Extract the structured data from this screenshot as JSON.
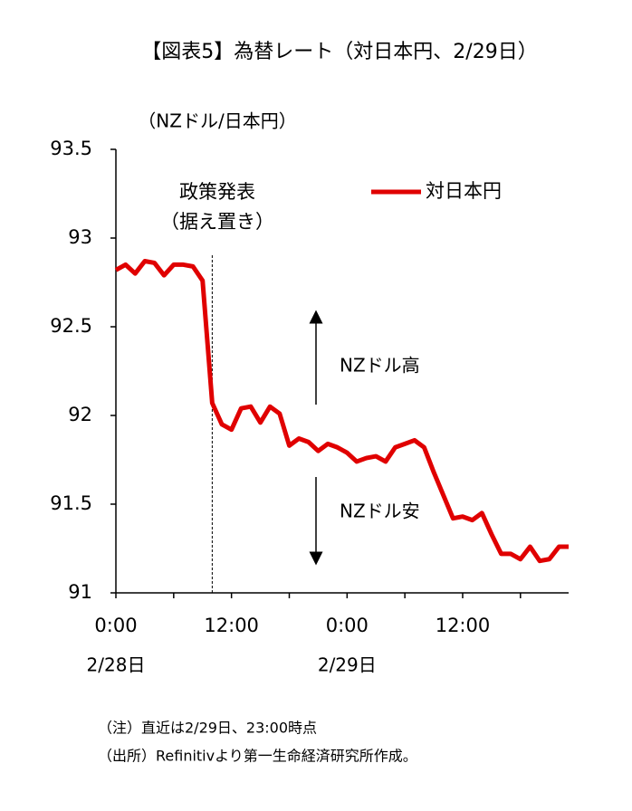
{
  "chart_data": {
    "type": "line",
    "title": "【図表5】為替レート（対日本円、2/29日）",
    "y_label": "（NZドル/日本円）",
    "xlim": [
      0,
      47
    ],
    "xticks": [
      {
        "value": 0,
        "label": "0:00"
      },
      {
        "value": 12,
        "label": "12:00"
      },
      {
        "value": 24,
        "label": "0:00"
      },
      {
        "value": 36,
        "label": "12:00"
      }
    ],
    "x_minor_ticks": [
      6,
      18,
      30,
      42
    ],
    "x_date_labels": [
      {
        "value": 0,
        "label": "2/28日"
      },
      {
        "value": 24,
        "label": "2/29日"
      }
    ],
    "ylim": [
      91,
      93.5
    ],
    "yticks": [
      91,
      91.5,
      92,
      92.5,
      93,
      93.5
    ],
    "x": [
      0,
      1,
      2,
      3,
      4,
      5,
      6,
      7,
      8,
      9,
      10,
      11,
      12,
      13,
      14,
      15,
      16,
      17,
      18,
      19,
      20,
      21,
      22,
      23,
      24,
      25,
      26,
      27,
      28,
      29,
      30,
      31,
      32,
      33,
      34,
      35,
      36,
      37,
      38,
      39,
      40,
      41,
      42,
      43,
      44,
      45,
      46,
      47
    ],
    "series": [
      {
        "name": "対日本円",
        "color": "#e00000",
        "values": [
          92.82,
          92.85,
          92.8,
          92.87,
          92.86,
          92.79,
          92.85,
          92.85,
          92.84,
          92.76,
          92.07,
          91.95,
          91.92,
          92.04,
          92.05,
          91.96,
          92.05,
          92.01,
          91.83,
          91.87,
          91.85,
          91.8,
          91.84,
          91.82,
          91.79,
          91.74,
          91.76,
          91.77,
          91.74,
          91.82,
          91.84,
          91.86,
          91.82,
          91.68,
          91.55,
          91.42,
          91.43,
          91.41,
          91.45,
          91.33,
          91.22,
          91.22,
          91.19,
          91.26,
          91.18,
          91.19,
          91.26,
          91.26
        ]
      }
    ],
    "event_x": 10,
    "event_label": [
      "政策発表",
      "（据え置き）"
    ],
    "up_label": "NZドル高",
    "down_label": "NZドル安",
    "legend": "upper right",
    "notes": [
      "（注）直近は2/29日、23:00時点",
      "（出所）Refinitivより第一生命経済研究所作成。"
    ]
  }
}
